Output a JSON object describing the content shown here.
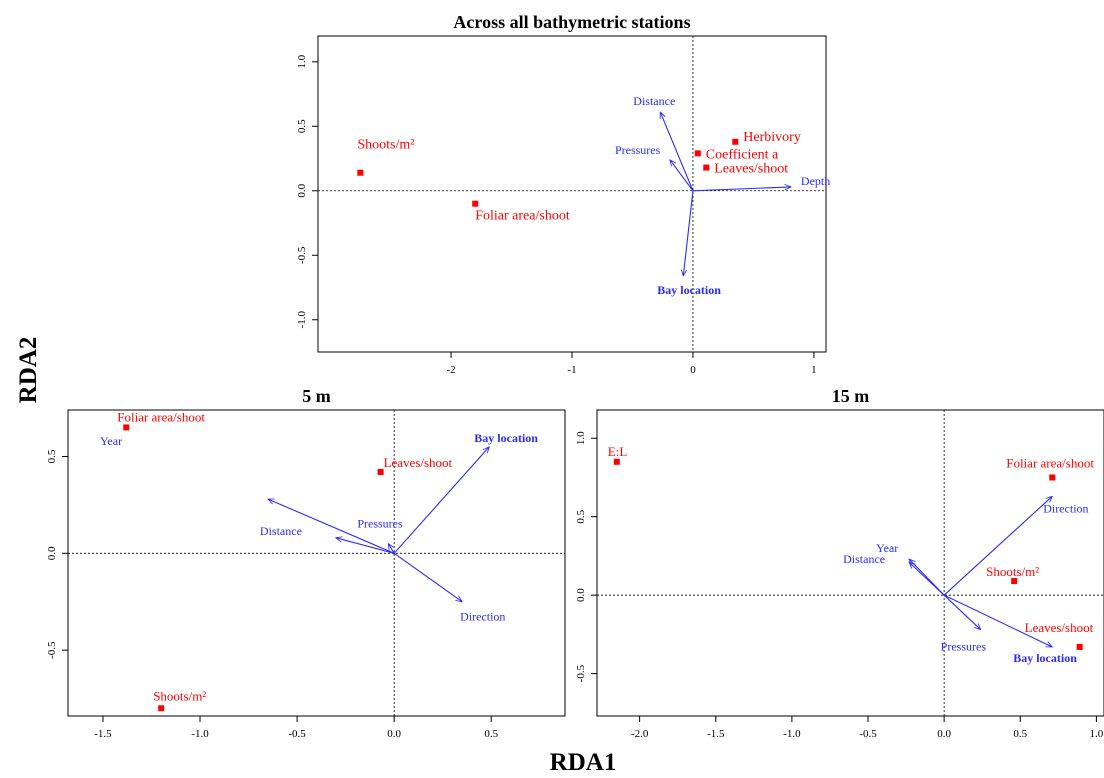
{
  "figure": {
    "x_label": "RDA1",
    "y_label": "RDA2"
  },
  "chart_data": [
    {
      "type": "scatter",
      "subtype": "rda-biplot",
      "title": "Across all bathymetric stations",
      "xlabel": "",
      "ylabel": "",
      "xlim": [
        -3.1,
        1.1
      ],
      "ylim": [
        -1.25,
        1.2
      ],
      "xticks": [
        "-2",
        "-1",
        "0",
        "1"
      ],
      "yticks": [
        "-1.0",
        "-0.5",
        "0.0",
        "0.5",
        "1.0"
      ],
      "grid": false,
      "points": [
        {
          "label": "Shoots/m²",
          "x": -2.75,
          "y": 0.14
        },
        {
          "label": "Foliar area/shoot",
          "x": -1.8,
          "y": -0.1
        },
        {
          "label": "Herbivory",
          "x": 0.35,
          "y": 0.38
        },
        {
          "label": "Coefficient a",
          "x": 0.04,
          "y": 0.29
        },
        {
          "label": "Leaves/shoot",
          "x": 0.11,
          "y": 0.18
        }
      ],
      "arrows": [
        {
          "label": "Distance",
          "x": -0.27,
          "y": 0.61,
          "bold": false
        },
        {
          "label": "Pressures",
          "x": -0.19,
          "y": 0.24,
          "bold": false
        },
        {
          "label": "Depth",
          "x": 0.81,
          "y": 0.03,
          "bold": false
        },
        {
          "label": "Bay location",
          "x": -0.08,
          "y": -0.66,
          "bold": true
        }
      ]
    },
    {
      "type": "scatter",
      "subtype": "rda-biplot",
      "title": "5 m",
      "xlabel": "",
      "ylabel": "",
      "xlim": [
        -1.68,
        0.88
      ],
      "ylim": [
        -0.84,
        0.74
      ],
      "xticks": [
        "-1.5",
        "-1.0",
        "-0.5",
        "0.0",
        "0.5"
      ],
      "yticks": [
        "-0.5",
        "0.0",
        "0.5"
      ],
      "grid": false,
      "points": [
        {
          "label": "Foliar area/shoot",
          "x": -1.38,
          "y": 0.65
        },
        {
          "label": "Leaves/shoot",
          "x": -0.07,
          "y": 0.42
        },
        {
          "label": "Shoots/m²",
          "x": -1.2,
          "y": -0.8
        }
      ],
      "arrows": [
        {
          "label": "Bay location",
          "x": 0.49,
          "y": 0.55,
          "bold": true
        },
        {
          "label": "Year",
          "x": -0.65,
          "y": 0.28,
          "bold": false
        },
        {
          "label": "Distance",
          "x": -0.3,
          "y": 0.08,
          "bold": false
        },
        {
          "label": "Pressures",
          "x": -0.03,
          "y": 0.05,
          "bold": false
        },
        {
          "label": "Direction",
          "x": 0.35,
          "y": -0.25,
          "bold": false
        }
      ]
    },
    {
      "type": "scatter",
      "subtype": "rda-biplot",
      "title": "15 m",
      "xlabel": "",
      "ylabel": "",
      "xlim": [
        -2.28,
        1.05
      ],
      "ylim": [
        -0.77,
        1.18
      ],
      "xticks": [
        "-2.0",
        "-1.5",
        "-1.0",
        "-0.5",
        "0.0",
        "0.5",
        "1.0"
      ],
      "yticks": [
        "-0.5",
        "0.0",
        "0.5",
        "1.0"
      ],
      "grid": false,
      "points": [
        {
          "label": "E:L",
          "x": -2.15,
          "y": 0.85
        },
        {
          "label": "Foliar area/shoot",
          "x": 0.71,
          "y": 0.75
        },
        {
          "label": "Shoots/m²",
          "x": 0.46,
          "y": 0.09
        },
        {
          "label": "Leaves/shoot",
          "x": 0.89,
          "y": -0.33
        }
      ],
      "arrows": [
        {
          "label": "Direction",
          "x": 0.71,
          "y": 0.63,
          "bold": false
        },
        {
          "label": "Year",
          "x": -0.23,
          "y": 0.23,
          "bold": false
        },
        {
          "label": "Distance",
          "x": -0.23,
          "y": 0.21,
          "bold": false
        },
        {
          "label": "Pressures",
          "x": 0.24,
          "y": -0.22,
          "bold": false
        },
        {
          "label": "Bay location",
          "x": 0.71,
          "y": -0.33,
          "bold": true
        }
      ]
    }
  ]
}
